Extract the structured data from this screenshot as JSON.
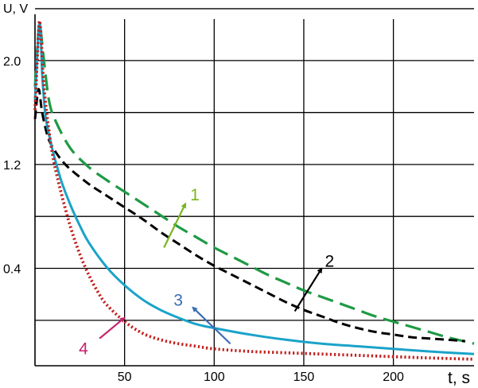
{
  "chart_data": {
    "type": "line",
    "xlabel": "t, s",
    "ylabel": "U, V",
    "xlim": [
      0,
      245
    ],
    "ylim": [
      -0.35,
      2.32
    ],
    "x_ticks": [
      50,
      100,
      150,
      200
    ],
    "y_ticks": [
      {
        "value": 2.0,
        "label": "2.0"
      },
      {
        "value": 1.2,
        "label": "1.2"
      },
      {
        "value": 0.4,
        "label": "0.4"
      }
    ],
    "grid": true,
    "series": [
      {
        "name": "1",
        "color": "#1e9a45",
        "label_color": "#7ab51d",
        "style": "long-dash",
        "x": [
          0,
          2,
          3,
          5,
          8,
          12,
          20,
          30,
          40,
          50,
          60,
          70,
          80,
          90,
          100,
          110,
          120,
          130,
          140,
          150,
          160,
          170,
          180,
          190,
          200,
          210,
          220,
          230,
          245
        ],
        "y": [
          1.8,
          2.24,
          2.25,
          2.0,
          1.68,
          1.52,
          1.32,
          1.18,
          1.08,
          0.99,
          0.9,
          0.81,
          0.72,
          0.64,
          0.56,
          0.49,
          0.42,
          0.35,
          0.29,
          0.23,
          0.18,
          0.13,
          0.08,
          0.03,
          -0.01,
          -0.05,
          -0.09,
          -0.13,
          -0.18
        ]
      },
      {
        "name": "2",
        "color": "#000000",
        "label_color": "#000000",
        "style": "dash",
        "x": [
          0,
          2,
          4,
          7,
          10,
          15,
          20,
          30,
          40,
          50,
          60,
          70,
          80,
          90,
          100,
          110,
          120,
          130,
          140,
          150,
          160,
          170,
          180,
          190,
          200,
          210,
          220,
          230,
          240
        ],
        "y": [
          1.55,
          1.78,
          1.6,
          1.42,
          1.33,
          1.23,
          1.16,
          1.05,
          0.96,
          0.87,
          0.78,
          0.68,
          0.59,
          0.5,
          0.42,
          0.35,
          0.28,
          0.21,
          0.14,
          0.08,
          0.03,
          -0.02,
          -0.06,
          -0.09,
          -0.11,
          -0.13,
          -0.14,
          -0.15,
          -0.16
        ]
      },
      {
        "name": "3",
        "color": "#1aa3c9",
        "label_color": "#3a6cb4",
        "style": "solid",
        "x": [
          0,
          2,
          3,
          4,
          5,
          6,
          8,
          10,
          12,
          15,
          20,
          25,
          30,
          40,
          50,
          60,
          70,
          80,
          90,
          100,
          120,
          140,
          160,
          180,
          200,
          220,
          245
        ],
        "y": [
          1.7,
          2.22,
          2.25,
          1.9,
          1.7,
          1.56,
          1.42,
          1.3,
          1.2,
          1.06,
          0.88,
          0.73,
          0.6,
          0.41,
          0.27,
          0.16,
          0.08,
          0.02,
          -0.03,
          -0.06,
          -0.11,
          -0.15,
          -0.18,
          -0.2,
          -0.22,
          -0.24,
          -0.26
        ]
      },
      {
        "name": "4",
        "color": "#c0201d",
        "label_color": "#c8226e",
        "style": "dotted",
        "x": [
          0,
          2,
          3,
          5,
          8,
          10,
          12,
          15,
          20,
          25,
          30,
          35,
          40,
          50,
          60,
          70,
          80,
          90,
          100,
          120,
          140,
          160,
          180,
          200,
          220,
          245
        ],
        "y": [
          1.62,
          2.22,
          2.26,
          1.8,
          1.44,
          1.26,
          1.13,
          0.96,
          0.71,
          0.51,
          0.35,
          0.22,
          0.12,
          -0.01,
          -0.1,
          -0.15,
          -0.18,
          -0.2,
          -0.22,
          -0.24,
          -0.25,
          -0.26,
          -0.27,
          -0.28,
          -0.29,
          -0.3
        ]
      }
    ],
    "annotations": [
      {
        "text": "1",
        "series": "1",
        "arrow_from": [
          72,
          0.56
        ],
        "arrow_to": [
          84,
          0.9
        ]
      },
      {
        "text": "2",
        "series": "2",
        "arrow_from": [
          145,
          0.07
        ],
        "arrow_to": [
          160,
          0.4
        ]
      },
      {
        "text": "3",
        "series": "3",
        "arrow_from": [
          109,
          -0.18
        ],
        "arrow_to": [
          88,
          0.1
        ]
      },
      {
        "text": "4",
        "series": "4",
        "arrow_from": [
          36,
          -0.14
        ],
        "arrow_to": [
          50,
          0.02
        ]
      }
    ]
  }
}
